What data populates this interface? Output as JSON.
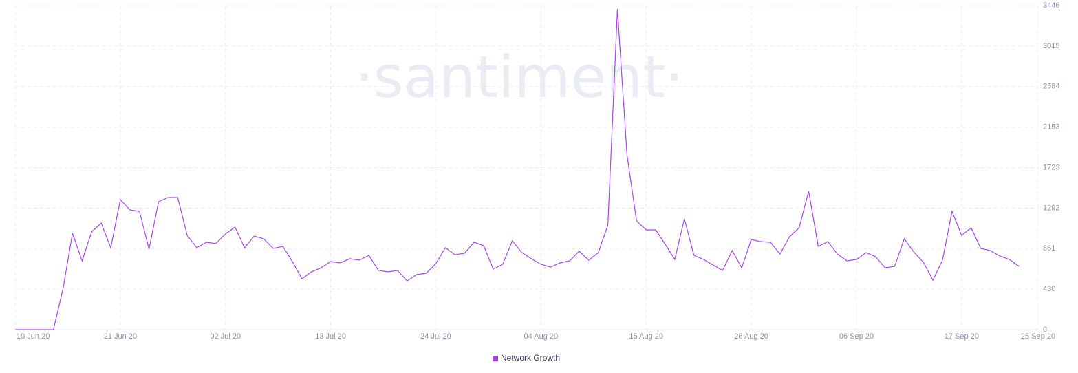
{
  "chart_data": {
    "type": "line",
    "watermark": "·santiment·",
    "x": [
      "10 Jun 20",
      "11 Jun 20",
      "12 Jun 20",
      "13 Jun 20",
      "14 Jun 20",
      "15 Jun 20",
      "16 Jun 20",
      "17 Jun 20",
      "18 Jun 20",
      "19 Jun 20",
      "20 Jun 20",
      "21 Jun 20",
      "22 Jun 20",
      "23 Jun 20",
      "24 Jun 20",
      "25 Jun 20",
      "26 Jun 20",
      "27 Jun 20",
      "28 Jun 20",
      "29 Jun 20",
      "30 Jun 20",
      "01 Jul 20",
      "02 Jul 20",
      "03 Jul 20",
      "04 Jul 20",
      "05 Jul 20",
      "06 Jul 20",
      "07 Jul 20",
      "08 Jul 20",
      "09 Jul 20",
      "10 Jul 20",
      "11 Jul 20",
      "12 Jul 20",
      "13 Jul 20",
      "14 Jul 20",
      "15 Jul 20",
      "16 Jul 20",
      "17 Jul 20",
      "18 Jul 20",
      "19 Jul 20",
      "20 Jul 20",
      "21 Jul 20",
      "22 Jul 20",
      "23 Jul 20",
      "24 Jul 20",
      "25 Jul 20",
      "26 Jul 20",
      "27 Jul 20",
      "28 Jul 20",
      "29 Jul 20",
      "30 Jul 20",
      "31 Jul 20",
      "01 Aug 20",
      "02 Aug 20",
      "03 Aug 20",
      "04 Aug 20",
      "05 Aug 20",
      "06 Aug 20",
      "07 Aug 20",
      "08 Aug 20",
      "09 Aug 20",
      "10 Aug 20",
      "11 Aug 20",
      "12 Aug 20",
      "13 Aug 20",
      "14 Aug 20",
      "15 Aug 20",
      "16 Aug 20",
      "17 Aug 20",
      "18 Aug 20",
      "19 Aug 20",
      "20 Aug 20",
      "21 Aug 20",
      "22 Aug 20",
      "23 Aug 20",
      "24 Aug 20",
      "25 Aug 20",
      "26 Aug 20",
      "27 Aug 20",
      "28 Aug 20",
      "29 Aug 20",
      "30 Aug 20",
      "31 Aug 20",
      "01 Sep 20",
      "02 Sep 20",
      "03 Sep 20",
      "04 Sep 20",
      "05 Sep 20",
      "06 Sep 20",
      "07 Sep 20",
      "08 Sep 20",
      "09 Sep 20",
      "10 Sep 20",
      "11 Sep 20",
      "12 Sep 20",
      "13 Sep 20",
      "14 Sep 20",
      "15 Sep 20",
      "16 Sep 20",
      "17 Sep 20",
      "18 Sep 20",
      "19 Sep 20",
      "20 Sep 20",
      "21 Sep 20",
      "22 Sep 20",
      "23 Sep 20"
    ],
    "series": [
      {
        "name": "Network Growth",
        "color": "#a646e6",
        "values": [
          0,
          0,
          0,
          0,
          0,
          432,
          1024,
          732,
          1039,
          1134,
          871,
          1383,
          1273,
          1258,
          856,
          1361,
          1405,
          1405,
          1002,
          871,
          929,
          915,
          1017,
          1090,
          871,
          995,
          966,
          863,
          885,
          724,
          541,
          615,
          658,
          724,
          710,
          754,
          739,
          790,
          629,
          615,
          629,
          519,
          585,
          600,
          702,
          871,
          797,
          812,
          929,
          893,
          644,
          695,
          944,
          819,
          754,
          695,
          666,
          710,
          732,
          834,
          739,
          819,
          1112,
          3409,
          1858,
          1156,
          1061,
          1061,
          907,
          746,
          1178,
          790,
          746,
          688,
          629,
          841,
          658,
          958,
          936,
          929,
          805,
          988,
          1083,
          1471,
          885,
          936,
          805,
          732,
          746,
          819,
          776,
          658,
          673,
          966,
          827,
          717,
          527,
          739,
          1258,
          1002,
          1083,
          863,
          841,
          783,
          746,
          673
        ]
      }
    ],
    "xlim": [
      "10 Jun 20",
      "25 Sep 20"
    ],
    "xticks": [
      "10 Jun 20",
      "21 Jun 20",
      "02 Jul 20",
      "13 Jul 20",
      "24 Jul 20",
      "04 Aug 20",
      "15 Aug 20",
      "26 Aug 20",
      "06 Sep 20",
      "17 Sep 20",
      "25 Sep 20"
    ],
    "ylim": [
      0,
      3446
    ],
    "yticks": [
      0,
      430,
      861,
      1292,
      1723,
      2153,
      2584,
      3015,
      3446
    ],
    "grid": true
  }
}
